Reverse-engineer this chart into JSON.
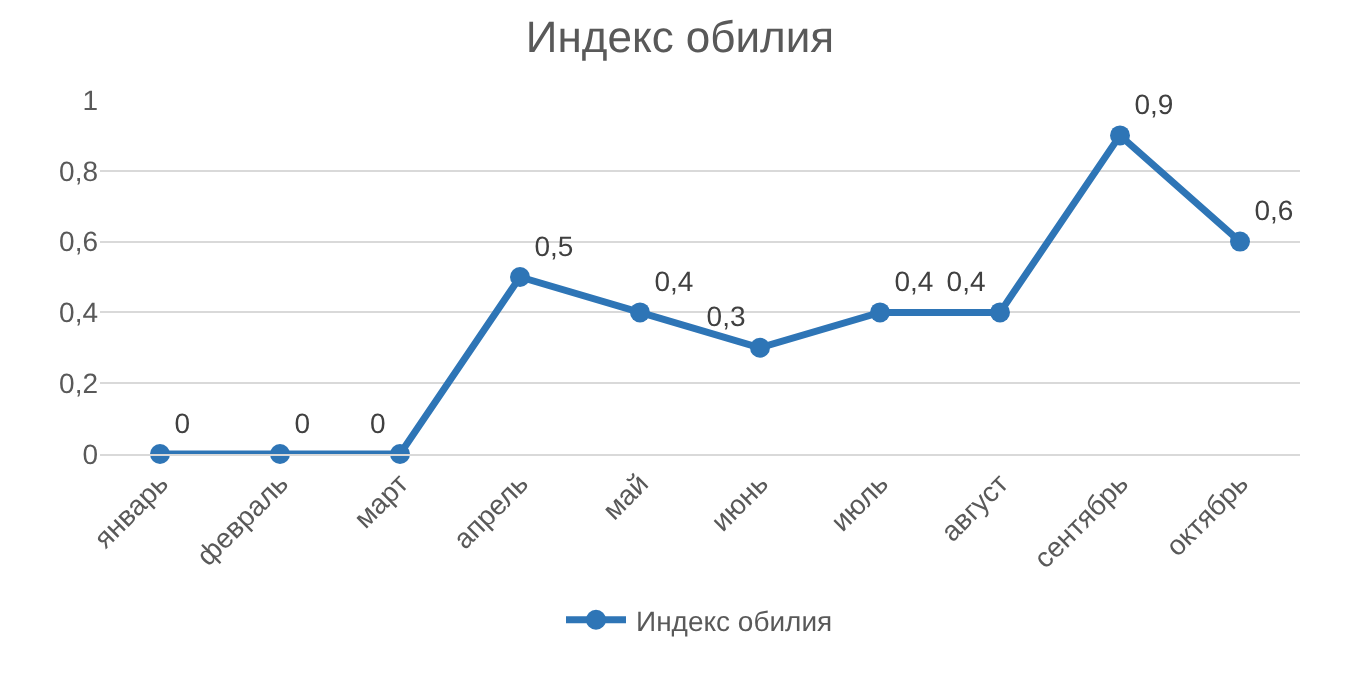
{
  "chart_data": {
    "type": "line",
    "title": "Индекс обилия",
    "categories": [
      "январь",
      "февраль",
      "март",
      "апрель",
      "май",
      "июнь",
      "июль",
      "август",
      "сентябрь",
      "октябрь"
    ],
    "series": [
      {
        "name": "Индекс обилия",
        "color": "#2e75b6",
        "values": [
          0,
          0,
          0,
          0.5,
          0.4,
          0.3,
          0.4,
          0.4,
          0.9,
          0.6
        ],
        "value_labels": [
          "0",
          "0",
          "0",
          "0,5",
          "0,4",
          "0,3",
          "0,4",
          "0,4",
          "0,9",
          "0,6"
        ]
      }
    ],
    "ylim": [
      0,
      1
    ],
    "yticks": [
      0,
      {
        "value": 0.2,
        "label": "0,2"
      },
      {
        "value": 0.4,
        "label": "0,4"
      },
      {
        "value": 0.6,
        "label": "0,6"
      },
      {
        "value": 0.8,
        "label": "0,8"
      },
      1
    ],
    "grid": "y",
    "legend": "bottom",
    "marker": "circle",
    "line_style": "solid"
  }
}
